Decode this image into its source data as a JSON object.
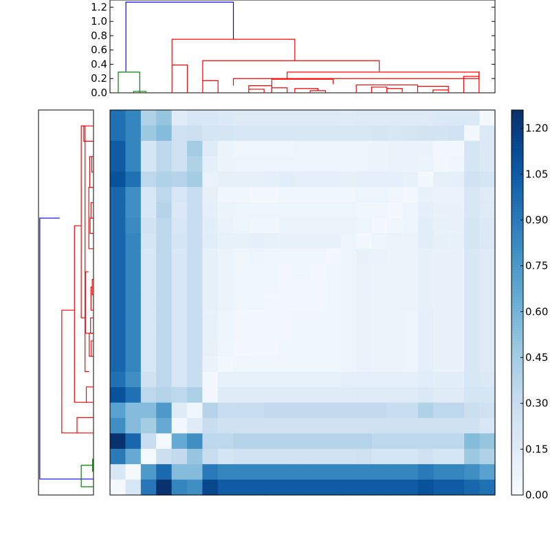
{
  "chart_data": {
    "type": "heatmap",
    "title": "",
    "xlabel": "",
    "ylabel": "",
    "colormap": "Blues",
    "color_range": [
      0.0,
      1.26
    ],
    "colorbar_ticks": [
      "0.00",
      "0.15",
      "0.30",
      "0.45",
      "0.60",
      "0.75",
      "0.90",
      "1.05",
      "1.20"
    ],
    "dendrogram_axis_ticks": [
      "0.0",
      "0.2",
      "0.4",
      "0.6",
      "0.8",
      "1.0",
      "1.2"
    ],
    "dendrogram_range": [
      0,
      1.3
    ],
    "link_colors": {
      "blue": "#0000ff",
      "red": "#ff0000",
      "green": "#008000"
    },
    "matrix": [
      [
        0.95,
        0.85,
        0.4,
        0.5,
        0.15,
        0.2,
        0.2,
        0.18,
        0.16,
        0.16,
        0.16,
        0.16,
        0.16,
        0.16,
        0.16,
        0.15,
        0.16,
        0.16,
        0.16,
        0.16,
        0.16,
        0.18,
        0.18,
        0.18,
        0.03
      ],
      [
        0.95,
        0.85,
        0.48,
        0.55,
        0.26,
        0.27,
        0.22,
        0.22,
        0.2,
        0.2,
        0.2,
        0.2,
        0.2,
        0.2,
        0.2,
        0.2,
        0.2,
        0.22,
        0.2,
        0.22,
        0.23,
        0.23,
        0.24,
        0.03,
        0.18
      ],
      [
        1.05,
        0.85,
        0.22,
        0.35,
        0.26,
        0.45,
        0.15,
        0.07,
        0.05,
        0.05,
        0.05,
        0.05,
        0.06,
        0.06,
        0.06,
        0.06,
        0.06,
        0.07,
        0.08,
        0.08,
        0.08,
        0.04,
        0.03,
        0.22,
        0.18
      ],
      [
        1.05,
        0.85,
        0.22,
        0.35,
        0.26,
        0.4,
        0.12,
        0.07,
        0.06,
        0.06,
        0.06,
        0.06,
        0.06,
        0.06,
        0.06,
        0.06,
        0.06,
        0.07,
        0.08,
        0.08,
        0.07,
        0.03,
        0.05,
        0.22,
        0.18
      ],
      [
        1.1,
        0.95,
        0.35,
        0.4,
        0.38,
        0.45,
        0.08,
        0.11,
        0.11,
        0.11,
        0.12,
        0.14,
        0.12,
        0.12,
        0.12,
        0.11,
        0.12,
        0.12,
        0.12,
        0.1,
        0.03,
        0.11,
        0.12,
        0.24,
        0.22
      ],
      [
        1.0,
        0.8,
        0.2,
        0.35,
        0.2,
        0.3,
        0.11,
        0.05,
        0.05,
        0.04,
        0.04,
        0.05,
        0.05,
        0.05,
        0.05,
        0.05,
        0.06,
        0.06,
        0.05,
        0.03,
        0.1,
        0.08,
        0.08,
        0.2,
        0.15
      ],
      [
        1.0,
        0.8,
        0.2,
        0.38,
        0.18,
        0.3,
        0.12,
        0.07,
        0.06,
        0.06,
        0.06,
        0.06,
        0.06,
        0.06,
        0.06,
        0.06,
        0.05,
        0.05,
        0.03,
        0.06,
        0.12,
        0.09,
        0.09,
        0.2,
        0.16
      ],
      [
        1.0,
        0.82,
        0.24,
        0.35,
        0.2,
        0.3,
        0.13,
        0.08,
        0.06,
        0.05,
        0.05,
        0.07,
        0.07,
        0.07,
        0.07,
        0.07,
        0.06,
        0.03,
        0.05,
        0.06,
        0.13,
        0.1,
        0.09,
        0.22,
        0.18
      ],
      [
        1.0,
        0.85,
        0.22,
        0.35,
        0.22,
        0.3,
        0.14,
        0.1,
        0.1,
        0.12,
        0.1,
        0.09,
        0.09,
        0.09,
        0.09,
        0.06,
        0.03,
        0.06,
        0.07,
        0.07,
        0.13,
        0.11,
        0.1,
        0.22,
        0.18
      ],
      [
        1.0,
        0.85,
        0.2,
        0.35,
        0.2,
        0.3,
        0.11,
        0.07,
        0.05,
        0.06,
        0.05,
        0.05,
        0.05,
        0.05,
        0.03,
        0.06,
        0.09,
        0.08,
        0.07,
        0.07,
        0.11,
        0.09,
        0.09,
        0.2,
        0.16
      ],
      [
        1.0,
        0.85,
        0.2,
        0.35,
        0.2,
        0.3,
        0.11,
        0.07,
        0.05,
        0.05,
        0.05,
        0.04,
        0.05,
        0.03,
        0.05,
        0.06,
        0.08,
        0.07,
        0.07,
        0.07,
        0.11,
        0.09,
        0.09,
        0.2,
        0.16
      ],
      [
        1.0,
        0.85,
        0.2,
        0.35,
        0.2,
        0.3,
        0.11,
        0.07,
        0.05,
        0.05,
        0.05,
        0.04,
        0.03,
        0.04,
        0.05,
        0.06,
        0.08,
        0.07,
        0.07,
        0.07,
        0.11,
        0.09,
        0.09,
        0.2,
        0.16
      ],
      [
        1.0,
        0.85,
        0.2,
        0.35,
        0.2,
        0.3,
        0.11,
        0.07,
        0.05,
        0.05,
        0.04,
        0.03,
        0.04,
        0.04,
        0.05,
        0.06,
        0.08,
        0.07,
        0.07,
        0.07,
        0.11,
        0.09,
        0.09,
        0.2,
        0.16
      ],
      [
        1.0,
        0.85,
        0.2,
        0.35,
        0.2,
        0.3,
        0.1,
        0.06,
        0.04,
        0.03,
        0.03,
        0.04,
        0.05,
        0.05,
        0.05,
        0.06,
        0.08,
        0.07,
        0.07,
        0.06,
        0.12,
        0.09,
        0.09,
        0.2,
        0.16
      ],
      [
        1.0,
        0.85,
        0.2,
        0.35,
        0.2,
        0.3,
        0.1,
        0.06,
        0.04,
        0.03,
        0.03,
        0.04,
        0.05,
        0.05,
        0.05,
        0.06,
        0.08,
        0.07,
        0.07,
        0.06,
        0.12,
        0.09,
        0.09,
        0.2,
        0.16
      ],
      [
        1.0,
        0.85,
        0.2,
        0.35,
        0.2,
        0.3,
        0.1,
        0.05,
        0.03,
        0.04,
        0.04,
        0.05,
        0.05,
        0.05,
        0.05,
        0.06,
        0.08,
        0.07,
        0.07,
        0.06,
        0.12,
        0.09,
        0.09,
        0.2,
        0.16
      ],
      [
        1.0,
        0.85,
        0.2,
        0.35,
        0.2,
        0.3,
        0.08,
        0.03,
        0.05,
        0.05,
        0.05,
        0.05,
        0.05,
        0.05,
        0.05,
        0.06,
        0.08,
        0.07,
        0.07,
        0.06,
        0.12,
        0.09,
        0.09,
        0.2,
        0.16
      ],
      [
        0.95,
        0.8,
        0.25,
        0.35,
        0.2,
        0.3,
        0.03,
        0.1,
        0.1,
        0.1,
        0.1,
        0.1,
        0.1,
        0.1,
        0.1,
        0.12,
        0.12,
        0.12,
        0.12,
        0.12,
        0.14,
        0.13,
        0.13,
        0.2,
        0.18
      ],
      [
        1.1,
        0.95,
        0.35,
        0.38,
        0.35,
        0.42,
        0.03,
        0.15,
        0.15,
        0.15,
        0.15,
        0.15,
        0.15,
        0.15,
        0.15,
        0.15,
        0.16,
        0.16,
        0.16,
        0.16,
        0.18,
        0.16,
        0.16,
        0.22,
        0.22
      ],
      [
        0.7,
        0.55,
        0.55,
        0.75,
        0.15,
        0.05,
        0.38,
        0.3,
        0.3,
        0.3,
        0.32,
        0.32,
        0.32,
        0.32,
        0.32,
        0.32,
        0.32,
        0.32,
        0.3,
        0.3,
        0.4,
        0.35,
        0.35,
        0.28,
        0.25
      ],
      [
        0.8,
        0.55,
        0.45,
        0.65,
        0.03,
        0.15,
        0.3,
        0.25,
        0.25,
        0.25,
        0.25,
        0.25,
        0.25,
        0.25,
        0.25,
        0.25,
        0.25,
        0.25,
        0.25,
        0.25,
        0.25,
        0.25,
        0.25,
        0.25,
        0.2
      ],
      [
        1.25,
        1.0,
        0.3,
        0.02,
        0.65,
        0.8,
        0.35,
        0.35,
        0.38,
        0.38,
        0.38,
        0.38,
        0.38,
        0.38,
        0.38,
        0.38,
        0.38,
        0.35,
        0.35,
        0.35,
        0.35,
        0.35,
        0.35,
        0.55,
        0.5
      ],
      [
        0.9,
        0.65,
        0.02,
        0.28,
        0.32,
        0.5,
        0.3,
        0.22,
        0.24,
        0.24,
        0.24,
        0.24,
        0.24,
        0.24,
        0.24,
        0.24,
        0.25,
        0.22,
        0.22,
        0.22,
        0.25,
        0.22,
        0.22,
        0.48,
        0.4
      ],
      [
        0.2,
        0.02,
        0.75,
        0.98,
        0.55,
        0.55,
        0.9,
        0.85,
        0.85,
        0.85,
        0.85,
        0.85,
        0.85,
        0.85,
        0.85,
        0.85,
        0.85,
        0.85,
        0.85,
        0.85,
        0.9,
        0.85,
        0.85,
        0.8,
        0.7
      ],
      [
        0.02,
        0.2,
        0.92,
        1.25,
        0.85,
        0.8,
        1.15,
        1.05,
        1.05,
        1.05,
        1.05,
        1.05,
        1.05,
        1.05,
        1.05,
        1.05,
        1.05,
        1.05,
        1.05,
        1.05,
        1.1,
        1.05,
        1.05,
        1.0,
        0.95
      ]
    ],
    "top_dendrogram": [
      {
        "x": [
          0.5,
          0.5,
          7.5,
          7.5
        ],
        "y": [
          0.3,
          1.27,
          1.27,
          0.75
        ],
        "color": "blue"
      },
      {
        "x": [
          0,
          0,
          1.4,
          1.4
        ],
        "y": [
          0.0,
          0.29,
          0.29,
          0.0
        ],
        "color": "green"
      },
      {
        "x": [
          1.0,
          1.0,
          1.8,
          1.8
        ],
        "y": [
          0.0,
          0.02,
          0.02,
          0.0
        ],
        "color": "green"
      },
      {
        "x": [
          3.5,
          3.5,
          11.5,
          11.5
        ],
        "y": [
          0.4,
          0.75,
          0.75,
          0.45
        ],
        "color": "red"
      },
      {
        "x": [
          3.5,
          3.5,
          4.5,
          4.5
        ],
        "y": [
          0.0,
          0.39,
          0.39,
          0.0
        ],
        "color": "red"
      },
      {
        "x": [
          5.5,
          5.5,
          17,
          17
        ],
        "y": [
          0.17,
          0.45,
          0.45,
          0.3
        ],
        "color": "red"
      },
      {
        "x": [
          5.5,
          5.5,
          6.5,
          6.5
        ],
        "y": [
          0.0,
          0.17,
          0.17,
          0.0
        ],
        "color": "red"
      },
      {
        "x": [
          7.5,
          7.5,
          23.5,
          23.5
        ],
        "y": [
          0.1,
          0.2,
          0.2,
          0.3
        ],
        "color": "red"
      },
      {
        "x": [
          11,
          11,
          23.5,
          23.5
        ],
        "y": [
          0.2,
          0.29,
          0.29,
          0.23
        ],
        "color": "red"
      },
      {
        "x": [
          22.5,
          22.5,
          23.5,
          23.5
        ],
        "y": [
          0.0,
          0.23,
          0.23,
          0.0
        ],
        "color": "red"
      },
      {
        "x": [
          10,
          10,
          14,
          14
        ],
        "y": [
          0.1,
          0.19,
          0.19,
          0.12
        ],
        "color": "red"
      },
      {
        "x": [
          8.5,
          8.5,
          10,
          10
        ],
        "y": [
          0.05,
          0.1,
          0.1,
          0.0
        ],
        "color": "red"
      },
      {
        "x": [
          8.5,
          8.5,
          9.5,
          9.5
        ],
        "y": [
          0.0,
          0.05,
          0.05,
          0.0
        ],
        "color": "red"
      },
      {
        "x": [
          10,
          10,
          11,
          11
        ],
        "y": [
          0.0,
          0.07,
          0.07,
          0.0
        ],
        "color": "red"
      },
      {
        "x": [
          11.5,
          11.5,
          13,
          13
        ],
        "y": [
          0.0,
          0.06,
          0.06,
          0.03
        ],
        "color": "red"
      },
      {
        "x": [
          12.5,
          12.5,
          13.5,
          13.5
        ],
        "y": [
          0.0,
          0.03,
          0.03,
          0.0
        ],
        "color": "red"
      },
      {
        "x": [
          15.5,
          15.5,
          19.5,
          19.5
        ],
        "y": [
          0.0,
          0.11,
          0.11,
          0.08
        ],
        "color": "red"
      },
      {
        "x": [
          16.5,
          16.5,
          17.5,
          17.5
        ],
        "y": [
          0.0,
          0.08,
          0.08,
          0.0
        ],
        "color": "red"
      },
      {
        "x": [
          17.5,
          17.5,
          18.5,
          18.5
        ],
        "y": [
          0.0,
          0.06,
          0.06,
          0.0
        ],
        "color": "red"
      },
      {
        "x": [
          19.5,
          19.5,
          21.5,
          21.5
        ],
        "y": [
          0.0,
          0.09,
          0.09,
          0.04
        ],
        "color": "red"
      },
      {
        "x": [
          20.5,
          20.5,
          21.5,
          21.5
        ],
        "y": [
          0.0,
          0.04,
          0.04,
          0.0
        ],
        "color": "red"
      }
    ],
    "left_dendrogram": [
      {
        "y": [
          0.5,
          0.5,
          17.5,
          17.5
        ],
        "x": [
          0.0,
          1.27,
          1.27,
          0.8
        ],
        "color": "blue"
      },
      {
        "y": [
          0,
          0,
          1.4,
          1.4
        ],
        "x": [
          0.0,
          0.29,
          0.29,
          0.0
        ],
        "color": "green"
      },
      {
        "y": [
          1.0,
          1.0,
          1.8,
          1.8
        ],
        "x": [
          0.0,
          0.02,
          0.02,
          0.0
        ],
        "color": "green"
      },
      {
        "y": [
          3.5,
          3.5,
          11.5,
          11.5
        ],
        "x": [
          0.4,
          0.75,
          0.75,
          0.45
        ],
        "color": "red"
      },
      {
        "y": [
          3.5,
          3.5,
          4.5,
          4.5
        ],
        "x": [
          0.0,
          0.39,
          0.39,
          0.0
        ],
        "color": "red"
      },
      {
        "y": [
          5.5,
          5.5,
          17,
          17
        ],
        "x": [
          0.17,
          0.45,
          0.45,
          0.3
        ],
        "color": "red"
      },
      {
        "y": [
          5.5,
          5.5,
          6.5,
          6.5
        ],
        "x": [
          0.0,
          0.17,
          0.17,
          0.0
        ],
        "color": "red"
      },
      {
        "y": [
          7.5,
          7.5,
          23.5,
          23.5
        ],
        "x": [
          0.1,
          0.2,
          0.2,
          0.3
        ],
        "color": "red"
      },
      {
        "y": [
          11,
          11,
          23.5,
          23.5
        ],
        "x": [
          0.2,
          0.29,
          0.29,
          0.23
        ],
        "color": "red"
      },
      {
        "y": [
          22.5,
          22.5,
          23.5,
          23.5
        ],
        "x": [
          0.0,
          0.23,
          0.23,
          0.0
        ],
        "color": "red"
      },
      {
        "y": [
          10,
          10,
          14,
          14
        ],
        "x": [
          0.1,
          0.19,
          0.19,
          0.12
        ],
        "color": "red"
      },
      {
        "y": [
          8.5,
          8.5,
          10,
          10
        ],
        "x": [
          0.05,
          0.1,
          0.1,
          0.0
        ],
        "color": "red"
      },
      {
        "y": [
          8.5,
          8.5,
          9.5,
          9.5
        ],
        "x": [
          0.0,
          0.05,
          0.05,
          0.0
        ],
        "color": "red"
      },
      {
        "y": [
          10,
          10,
          11,
          11
        ],
        "x": [
          0.0,
          0.07,
          0.07,
          0.0
        ],
        "color": "red"
      },
      {
        "y": [
          11.5,
          11.5,
          13,
          13
        ],
        "x": [
          0.0,
          0.06,
          0.06,
          0.03
        ],
        "color": "red"
      },
      {
        "y": [
          12.5,
          12.5,
          13.5,
          13.5
        ],
        "x": [
          0.0,
          0.03,
          0.03,
          0.0
        ],
        "color": "red"
      },
      {
        "y": [
          15.5,
          15.5,
          19.5,
          19.5
        ],
        "x": [
          0.0,
          0.11,
          0.11,
          0.08
        ],
        "color": "red"
      },
      {
        "y": [
          16.5,
          16.5,
          17.5,
          17.5
        ],
        "x": [
          0.0,
          0.08,
          0.08,
          0.0
        ],
        "color": "red"
      },
      {
        "y": [
          17.5,
          17.5,
          18.5,
          18.5
        ],
        "x": [
          0.0,
          0.06,
          0.06,
          0.0
        ],
        "color": "red"
      },
      {
        "y": [
          19.5,
          19.5,
          21.5,
          21.5
        ],
        "x": [
          0.0,
          0.09,
          0.09,
          0.04
        ],
        "color": "red"
      },
      {
        "y": [
          20.5,
          20.5,
          21.5,
          21.5
        ],
        "x": [
          0.0,
          0.04,
          0.04,
          0.0
        ],
        "color": "red"
      }
    ]
  }
}
